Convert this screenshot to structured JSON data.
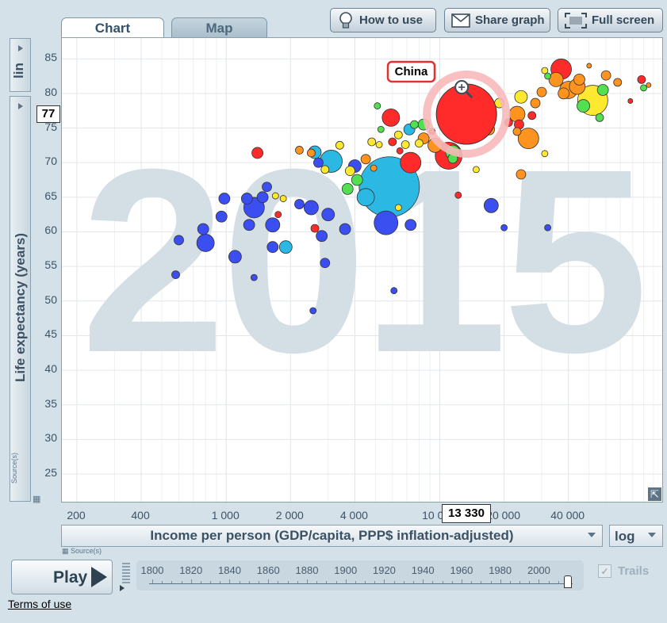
{
  "tabs": {
    "chart": "Chart",
    "map": "Map"
  },
  "toolbar": {
    "how_to_use": "How to use",
    "share_graph": "Share graph",
    "full_screen": "Full screen"
  },
  "y_axis": {
    "scale_label": "lin",
    "title": "Life expectancy (years)",
    "hover_value": "77",
    "source": "Source(s)"
  },
  "x_axis": {
    "title": "Income per person (GDP/capita, PPP$ inflation-adjusted)",
    "scale_label": "log",
    "hover_value": "13 330",
    "source": "Source(s)"
  },
  "year_watermark": "2015",
  "highlight_label": "China",
  "play": {
    "label": "Play"
  },
  "timeline": {
    "years": [
      "1800",
      "1820",
      "1840",
      "1860",
      "1880",
      "1900",
      "1920",
      "1940",
      "1960",
      "1980",
      "2000"
    ],
    "current": 2015
  },
  "trails_label": "Trails",
  "footer": {
    "terms": "Terms of use"
  },
  "colors": {
    "asia": "#ff2a2a",
    "africa": "#3b4ef0",
    "americas": "#ffe830",
    "europe": "#ff9320",
    "mid": "#2bb9e4",
    "green": "#52e052"
  },
  "chart_data": {
    "type": "scatter",
    "xlabel": "Income per person (GDP/capita, PPP$ inflation-adjusted)",
    "ylabel": "Life expectancy (years)",
    "x_scale": "log",
    "xlim": [
      170,
      110000
    ],
    "ylim": [
      21,
      88
    ],
    "x_ticks": [
      200,
      400,
      1000,
      2000,
      4000,
      10000,
      20000,
      40000
    ],
    "x_tick_labels": [
      "200",
      "400",
      "1 000",
      "2 000",
      "4 000",
      "10 000",
      "20 000",
      "40 000"
    ],
    "y_ticks": [
      25,
      30,
      35,
      40,
      45,
      50,
      55,
      60,
      65,
      70,
      75,
      80,
      85
    ],
    "grid": true,
    "points": [
      {
        "x": 13330,
        "y": 77,
        "r": 38,
        "c": "asia",
        "label": "China"
      },
      {
        "x": 5800,
        "y": 66.5,
        "r": 38,
        "c": "mid"
      },
      {
        "x": 5600,
        "y": 61.3,
        "r": 15,
        "c": "africa"
      },
      {
        "x": 3100,
        "y": 70.2,
        "r": 14,
        "c": "mid"
      },
      {
        "x": 1350,
        "y": 63.5,
        "r": 13,
        "c": "africa"
      },
      {
        "x": 11000,
        "y": 71,
        "r": 17,
        "c": "asia"
      },
      {
        "x": 7300,
        "y": 70,
        "r": 13,
        "c": "asia"
      },
      {
        "x": 52000,
        "y": 79,
        "r": 19,
        "c": "americas"
      },
      {
        "x": 37000,
        "y": 83.5,
        "r": 13,
        "c": "asia"
      },
      {
        "x": 40000,
        "y": 80.5,
        "r": 11,
        "c": "europe"
      },
      {
        "x": 44000,
        "y": 81,
        "r": 10,
        "c": "europe"
      },
      {
        "x": 35000,
        "y": 82,
        "r": 9,
        "c": "europe"
      },
      {
        "x": 26000,
        "y": 73.5,
        "r": 13,
        "c": "europe"
      },
      {
        "x": 23000,
        "y": 77,
        "r": 10,
        "c": "europe"
      },
      {
        "x": 5900,
        "y": 76.5,
        "r": 11,
        "c": "asia"
      },
      {
        "x": 9500,
        "y": 72.5,
        "r": 9,
        "c": "europe"
      },
      {
        "x": 14000,
        "y": 75,
        "r": 9,
        "c": "green"
      },
      {
        "x": 11500,
        "y": 71.5,
        "r": 9,
        "c": "green"
      },
      {
        "x": 8400,
        "y": 75.5,
        "r": 7,
        "c": "green"
      },
      {
        "x": 4500,
        "y": 65,
        "r": 11,
        "c": "mid"
      },
      {
        "x": 4000,
        "y": 69.5,
        "r": 8,
        "c": "africa"
      },
      {
        "x": 3700,
        "y": 66.2,
        "r": 7,
        "c": "green"
      },
      {
        "x": 3000,
        "y": 62.5,
        "r": 8,
        "c": "africa"
      },
      {
        "x": 2500,
        "y": 63.5,
        "r": 9,
        "c": "africa"
      },
      {
        "x": 2600,
        "y": 71.5,
        "r": 8,
        "c": "mid"
      },
      {
        "x": 1900,
        "y": 57.8,
        "r": 8,
        "c": "mid"
      },
      {
        "x": 1650,
        "y": 57.8,
        "r": 7,
        "c": "africa"
      },
      {
        "x": 1280,
        "y": 61,
        "r": 7,
        "c": "africa"
      },
      {
        "x": 1650,
        "y": 61,
        "r": 9,
        "c": "africa"
      },
      {
        "x": 1100,
        "y": 56.4,
        "r": 8,
        "c": "africa"
      },
      {
        "x": 800,
        "y": 58.4,
        "r": 11,
        "c": "africa"
      },
      {
        "x": 780,
        "y": 60.4,
        "r": 7,
        "c": "africa"
      },
      {
        "x": 950,
        "y": 62.2,
        "r": 7,
        "c": "africa"
      },
      {
        "x": 980,
        "y": 64.8,
        "r": 7,
        "c": "africa"
      },
      {
        "x": 600,
        "y": 58.8,
        "r": 6,
        "c": "africa"
      },
      {
        "x": 580,
        "y": 53.8,
        "r": 5,
        "c": "africa"
      },
      {
        "x": 1250,
        "y": 64.8,
        "r": 7,
        "c": "africa"
      },
      {
        "x": 1480,
        "y": 65,
        "r": 7,
        "c": "africa"
      },
      {
        "x": 1350,
        "y": 53.4,
        "r": 4,
        "c": "africa"
      },
      {
        "x": 2800,
        "y": 59.4,
        "r": 7,
        "c": "africa"
      },
      {
        "x": 3600,
        "y": 60.4,
        "r": 7,
        "c": "africa"
      },
      {
        "x": 2550,
        "y": 48.6,
        "r": 4,
        "c": "africa"
      },
      {
        "x": 2200,
        "y": 64,
        "r": 6,
        "c": "africa"
      },
      {
        "x": 2700,
        "y": 70,
        "r": 6,
        "c": "africa"
      },
      {
        "x": 7300,
        "y": 61,
        "r": 7,
        "c": "africa"
      },
      {
        "x": 6100,
        "y": 51.5,
        "r": 4,
        "c": "africa"
      },
      {
        "x": 17400,
        "y": 63.8,
        "r": 9,
        "c": "africa"
      },
      {
        "x": 20000,
        "y": 60.6,
        "r": 4,
        "c": "africa"
      },
      {
        "x": 32000,
        "y": 60.6,
        "r": 4,
        "c": "africa"
      },
      {
        "x": 2900,
        "y": 55.5,
        "r": 6,
        "c": "africa"
      },
      {
        "x": 1550,
        "y": 66.5,
        "r": 6,
        "c": "africa"
      },
      {
        "x": 1850,
        "y": 64.8,
        "r": 4,
        "c": "americas"
      },
      {
        "x": 1700,
        "y": 65.2,
        "r": 4,
        "c": "americas"
      },
      {
        "x": 2900,
        "y": 69,
        "r": 5,
        "c": "americas"
      },
      {
        "x": 3400,
        "y": 72.5,
        "r": 5,
        "c": "americas"
      },
      {
        "x": 4800,
        "y": 73,
        "r": 5,
        "c": "americas"
      },
      {
        "x": 5200,
        "y": 72.6,
        "r": 4,
        "c": "americas"
      },
      {
        "x": 6400,
        "y": 74,
        "r": 5,
        "c": "americas"
      },
      {
        "x": 6900,
        "y": 72.6,
        "r": 5,
        "c": "americas"
      },
      {
        "x": 8000,
        "y": 72.8,
        "r": 5,
        "c": "americas"
      },
      {
        "x": 16000,
        "y": 79,
        "r": 7,
        "c": "americas"
      },
      {
        "x": 19000,
        "y": 78.6,
        "r": 6,
        "c": "americas"
      },
      {
        "x": 24000,
        "y": 79.5,
        "r": 8,
        "c": "americas"
      },
      {
        "x": 31000,
        "y": 71.3,
        "r": 4,
        "c": "americas"
      },
      {
        "x": 3800,
        "y": 68.8,
        "r": 6,
        "c": "americas"
      },
      {
        "x": 1400,
        "y": 71.4,
        "r": 7,
        "c": "asia"
      },
      {
        "x": 2200,
        "y": 71.8,
        "r": 5,
        "c": "europe"
      },
      {
        "x": 2500,
        "y": 71.4,
        "r": 5,
        "c": "europe"
      },
      {
        "x": 4500,
        "y": 70.5,
        "r": 6,
        "c": "europe"
      },
      {
        "x": 6000,
        "y": 73,
        "r": 5,
        "c": "asia"
      },
      {
        "x": 6500,
        "y": 71.7,
        "r": 4,
        "c": "asia"
      },
      {
        "x": 8400,
        "y": 73.5,
        "r": 7,
        "c": "europe"
      },
      {
        "x": 4100,
        "y": 67.5,
        "r": 7,
        "c": "green"
      },
      {
        "x": 4900,
        "y": 69.2,
        "r": 4,
        "c": "europe"
      },
      {
        "x": 2600,
        "y": 60.5,
        "r": 5,
        "c": "asia"
      },
      {
        "x": 1750,
        "y": 62.5,
        "r": 4,
        "c": "asia"
      },
      {
        "x": 12200,
        "y": 65.3,
        "r": 4,
        "c": "asia"
      },
      {
        "x": 23500,
        "y": 75.5,
        "r": 6,
        "c": "asia"
      },
      {
        "x": 23000,
        "y": 74.5,
        "r": 5,
        "c": "europe"
      },
      {
        "x": 27000,
        "y": 76.8,
        "r": 5,
        "c": "asia"
      },
      {
        "x": 24000,
        "y": 68.3,
        "r": 6,
        "c": "europe"
      },
      {
        "x": 28000,
        "y": 78.6,
        "r": 6,
        "c": "europe"
      },
      {
        "x": 30000,
        "y": 80.2,
        "r": 6,
        "c": "europe"
      },
      {
        "x": 38000,
        "y": 80,
        "r": 7,
        "c": "europe"
      },
      {
        "x": 45000,
        "y": 82,
        "r": 7,
        "c": "europe"
      },
      {
        "x": 58000,
        "y": 80.5,
        "r": 7,
        "c": "green"
      },
      {
        "x": 60000,
        "y": 82.6,
        "r": 6,
        "c": "europe"
      },
      {
        "x": 68000,
        "y": 81.6,
        "r": 5,
        "c": "europe"
      },
      {
        "x": 88000,
        "y": 82,
        "r": 5,
        "c": "asia"
      },
      {
        "x": 90000,
        "y": 80.8,
        "r": 4,
        "c": "green"
      },
      {
        "x": 95000,
        "y": 81.2,
        "r": 3,
        "c": "europe"
      },
      {
        "x": 47000,
        "y": 78.2,
        "r": 8,
        "c": "green"
      },
      {
        "x": 56000,
        "y": 76.5,
        "r": 5,
        "c": "green"
      },
      {
        "x": 32000,
        "y": 82.5,
        "r": 4,
        "c": "green"
      },
      {
        "x": 31000,
        "y": 83.3,
        "r": 4,
        "c": "americas"
      },
      {
        "x": 50000,
        "y": 84,
        "r": 3,
        "c": "europe"
      },
      {
        "x": 78000,
        "y": 78.9,
        "r": 3,
        "c": "asia"
      },
      {
        "x": 17000,
        "y": 74.8,
        "r": 7,
        "c": "europe"
      },
      {
        "x": 16200,
        "y": 76.8,
        "r": 6,
        "c": "europe"
      },
      {
        "x": 21000,
        "y": 75.8,
        "r": 5,
        "c": "asia"
      },
      {
        "x": 14800,
        "y": 69,
        "r": 4,
        "c": "americas"
      },
      {
        "x": 7200,
        "y": 74.8,
        "r": 7,
        "c": "mid"
      },
      {
        "x": 7600,
        "y": 75.5,
        "r": 5,
        "c": "green"
      },
      {
        "x": 5300,
        "y": 74.8,
        "r": 4,
        "c": "green"
      },
      {
        "x": 9200,
        "y": 74.5,
        "r": 4,
        "c": "asia"
      },
      {
        "x": 5100,
        "y": 78.2,
        "r": 4,
        "c": "green"
      },
      {
        "x": 11500,
        "y": 70.6,
        "r": 6,
        "c": "green"
      },
      {
        "x": 6400,
        "y": 63.5,
        "r": 4,
        "c": "americas"
      }
    ]
  }
}
